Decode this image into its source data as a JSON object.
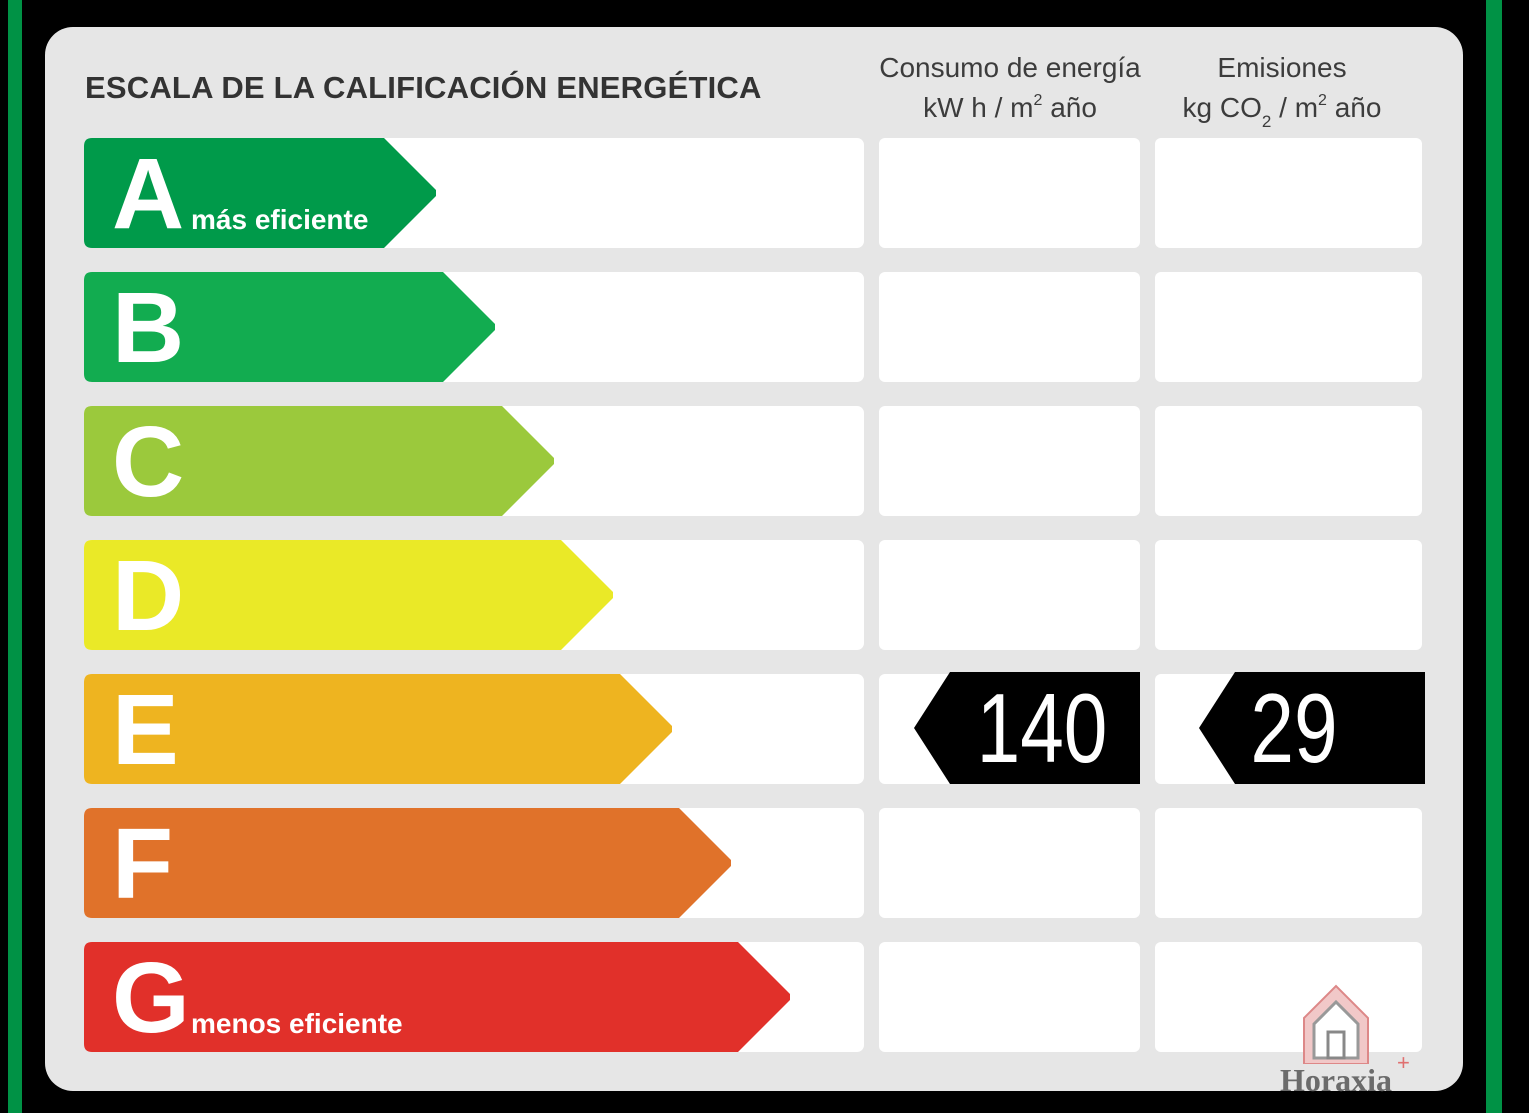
{
  "title": "ESCALA DE LA CALIFICACIÓN ENERGÉTICA",
  "columns": {
    "energy": {
      "line1": "Consumo de energía",
      "line2_a": "kW h  / m",
      "line2_sup": "2",
      "line2_b": " año"
    },
    "emissions": {
      "line1": "Emisiones",
      "line2_a": "kg CO",
      "line2_sub": "2",
      "line2_b": "  / m",
      "line2_sup": "2",
      "line2_c": " año"
    }
  },
  "ratings": [
    {
      "letter": "A",
      "label": "más eficiente",
      "color": "#009a4a"
    },
    {
      "letter": "B",
      "label": "",
      "color": "#12ac50"
    },
    {
      "letter": "C",
      "label": "",
      "color": "#9bc93c"
    },
    {
      "letter": "D",
      "label": "",
      "color": "#eae927"
    },
    {
      "letter": "E",
      "label": "",
      "color": "#eeb420"
    },
    {
      "letter": "F",
      "label": "",
      "color": "#e0722a"
    },
    {
      "letter": "G",
      "label": "menos eficiente",
      "color": "#e1302a"
    }
  ],
  "current": {
    "rating": "E",
    "energy_value": "140",
    "emissions_value": "29"
  },
  "watermark": {
    "text": "Horaxia",
    "plus": "+"
  },
  "colors": {
    "frame": "#009245",
    "panel": "#e6e6e6",
    "tag": "#000000"
  }
}
